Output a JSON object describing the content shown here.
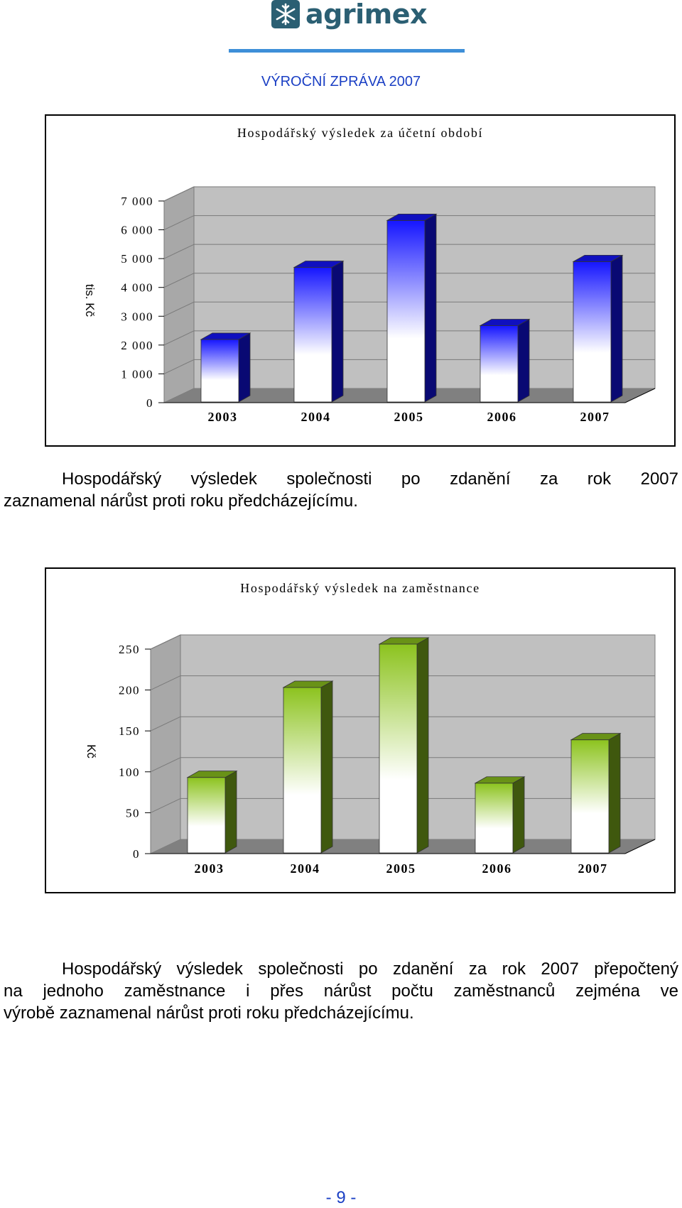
{
  "header": {
    "logo_text": "agrimex",
    "report_title": "VÝROČNÍ ZPRÁVA 2007"
  },
  "charts": [
    {
      "type": "bar",
      "title": "Hospodářský výsledek za účetní období",
      "ylabel": "tis. Kč",
      "categories": [
        "2003",
        "2004",
        "2005",
        "2006",
        "2007"
      ],
      "values": [
        1850,
        4350,
        5980,
        2330,
        4550
      ],
      "ylim": [
        0,
        7000
      ],
      "yticks": [
        "0",
        "1 000",
        "2 000",
        "3 000",
        "4 000",
        "5 000",
        "6 000",
        "7 000"
      ],
      "colors": {
        "bar_top": "#1515ff",
        "bar_bottom": "#ffffff",
        "wall": "#c0c0c0",
        "floor": "#808080"
      }
    },
    {
      "type": "bar",
      "title": "Hospodářský výsledek na zaměstnance",
      "ylabel": "Kč",
      "categories": [
        "2003",
        "2004",
        "2005",
        "2006",
        "2007"
      ],
      "values": [
        81,
        191,
        244,
        74,
        127
      ],
      "ylim": [
        0,
        250
      ],
      "yticks": [
        "0",
        "50",
        "100",
        "150",
        "200",
        "250"
      ],
      "colors": {
        "bar_top": "#8cc31e",
        "bar_bottom": "#ffffff",
        "wall": "#c0c0c0",
        "floor": "#808080"
      }
    }
  ],
  "chart_data": [
    {
      "type": "bar",
      "title": "Hospodářský výsledek za účetní období",
      "ylabel": "tis. Kč",
      "categories": [
        "2003",
        "2004",
        "2005",
        "2006",
        "2007"
      ],
      "values": [
        1850,
        4350,
        5980,
        2330,
        4550
      ],
      "ylim": [
        0,
        7000
      ]
    },
    {
      "type": "bar",
      "title": "Hospodářský výsledek na zaměstnance",
      "ylabel": "Kč",
      "categories": [
        "2003",
        "2004",
        "2005",
        "2006",
        "2007"
      ],
      "values": [
        81,
        191,
        244,
        74,
        127
      ],
      "ylim": [
        0,
        250
      ]
    }
  ],
  "body": {
    "paragraph_1_line_1": "Hospodářský výsledek společnosti po zdanění za rok 2007",
    "paragraph_1_line_2": "zaznamenal nárůst proti roku předcházejícímu.",
    "paragraph_2_line_1": "Hospodářský výsledek společnosti po zdanění za rok 2007 přepočtený",
    "paragraph_2_line_2": "na jednoho zaměstnance i přes nárůst počtu zaměstnanců zejména ve",
    "paragraph_2_line_3": "výrobě zaznamenal nárůst proti roku předcházejícímu."
  },
  "footer": {
    "page_number": "- 9 -"
  }
}
